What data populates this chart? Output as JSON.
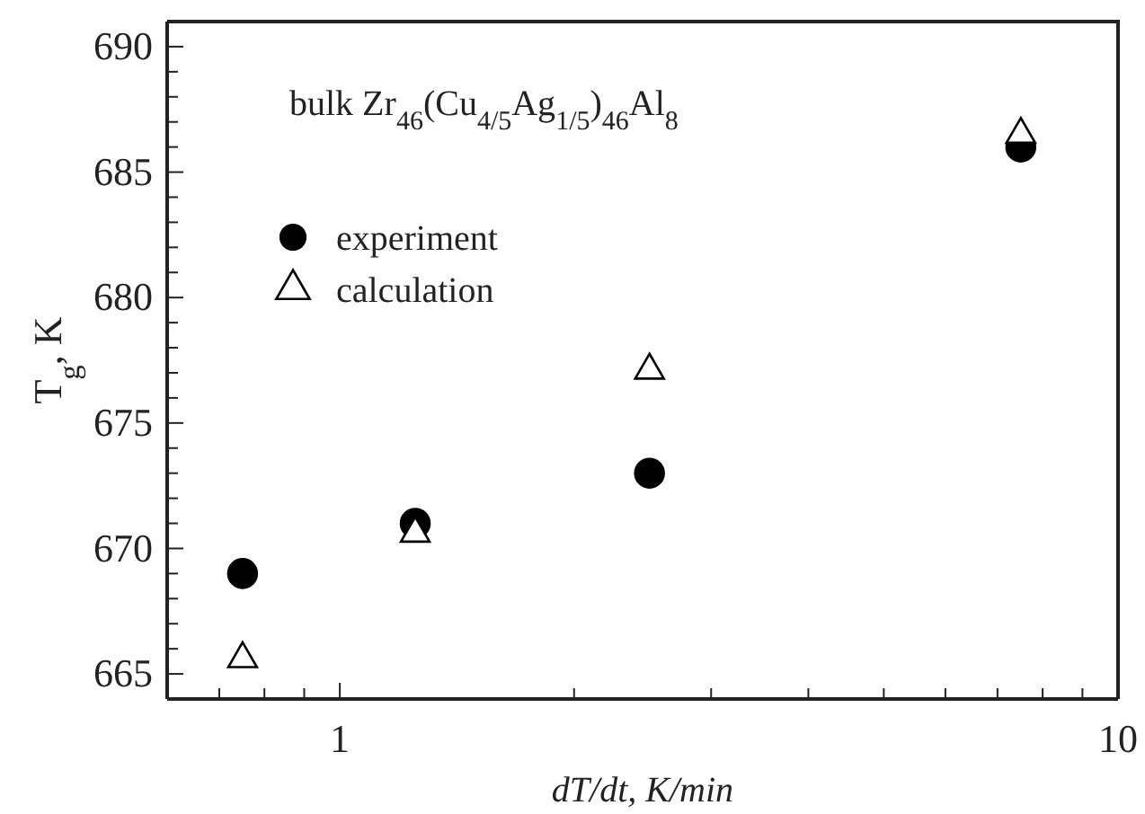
{
  "chart_data": {
    "type": "scatter",
    "xlabel": "dT/dt, K/min",
    "ylabel": "T$_{g}$, K",
    "log": "x",
    "xlim": [
      0.6,
      10
    ],
    "ylim": [
      664,
      691
    ],
    "xticks": [
      {
        "value": 0.6,
        "label": null
      },
      {
        "value": 0.7,
        "label": null
      },
      {
        "value": 0.8,
        "label": null
      },
      {
        "value": 0.9,
        "label": null
      },
      1,
      {
        "value": 2,
        "label": null
      },
      {
        "value": 3,
        "label": null
      },
      {
        "value": 4,
        "label": null
      },
      {
        "value": 5,
        "label": null
      },
      {
        "value": 6,
        "label": null
      },
      {
        "value": 7,
        "label": null
      },
      {
        "value": 8,
        "label": null
      },
      {
        "value": 9,
        "label": null
      },
      10
    ],
    "yticks": [
      {
        "value": 664,
        "label": null
      },
      665,
      {
        "value": 666,
        "label": null
      },
      {
        "value": 667,
        "label": null
      },
      {
        "value": 668,
        "label": null
      },
      {
        "value": 669,
        "label": null
      },
      670,
      {
        "value": 671,
        "label": null
      },
      {
        "value": 672,
        "label": null
      },
      {
        "value": 673,
        "label": null
      },
      {
        "value": 674,
        "label": null
      },
      675,
      {
        "value": 676,
        "label": null
      },
      {
        "value": 677,
        "label": null
      },
      {
        "value": 678,
        "label": null
      },
      {
        "value": 679,
        "label": null
      },
      680,
      {
        "value": 681,
        "label": null
      },
      {
        "value": 682,
        "label": null
      },
      {
        "value": 683,
        "label": null
      },
      {
        "value": 684,
        "label": null
      },
      685,
      {
        "value": 686,
        "label": null
      },
      {
        "value": 687,
        "label": null
      },
      {
        "value": 688,
        "label": null
      },
      {
        "value": 689,
        "label": null
      },
      690,
      {
        "value": 691,
        "label": null
      }
    ],
    "grid": false,
    "legend": "top left",
    "annotations": [
      "bulk Zr$_{46}$(Cu$_{4/5}$Ag$_{1/5}$)$_{46}$Al$_{8}$"
    ],
    "series": [
      {
        "name": "experiment",
        "color": "#000000",
        "marker": "circle",
        "x": [
          0.75,
          1.25,
          2.5,
          7.5
        ],
        "values": [
          669,
          671,
          673,
          686
        ]
      },
      {
        "name": "calculation",
        "color": "#000000",
        "marker": "triangle",
        "x": [
          0.75,
          1.25,
          2.5,
          7.5
        ],
        "values": [
          665.6,
          670.6,
          677.1,
          686.5
        ]
      }
    ]
  }
}
